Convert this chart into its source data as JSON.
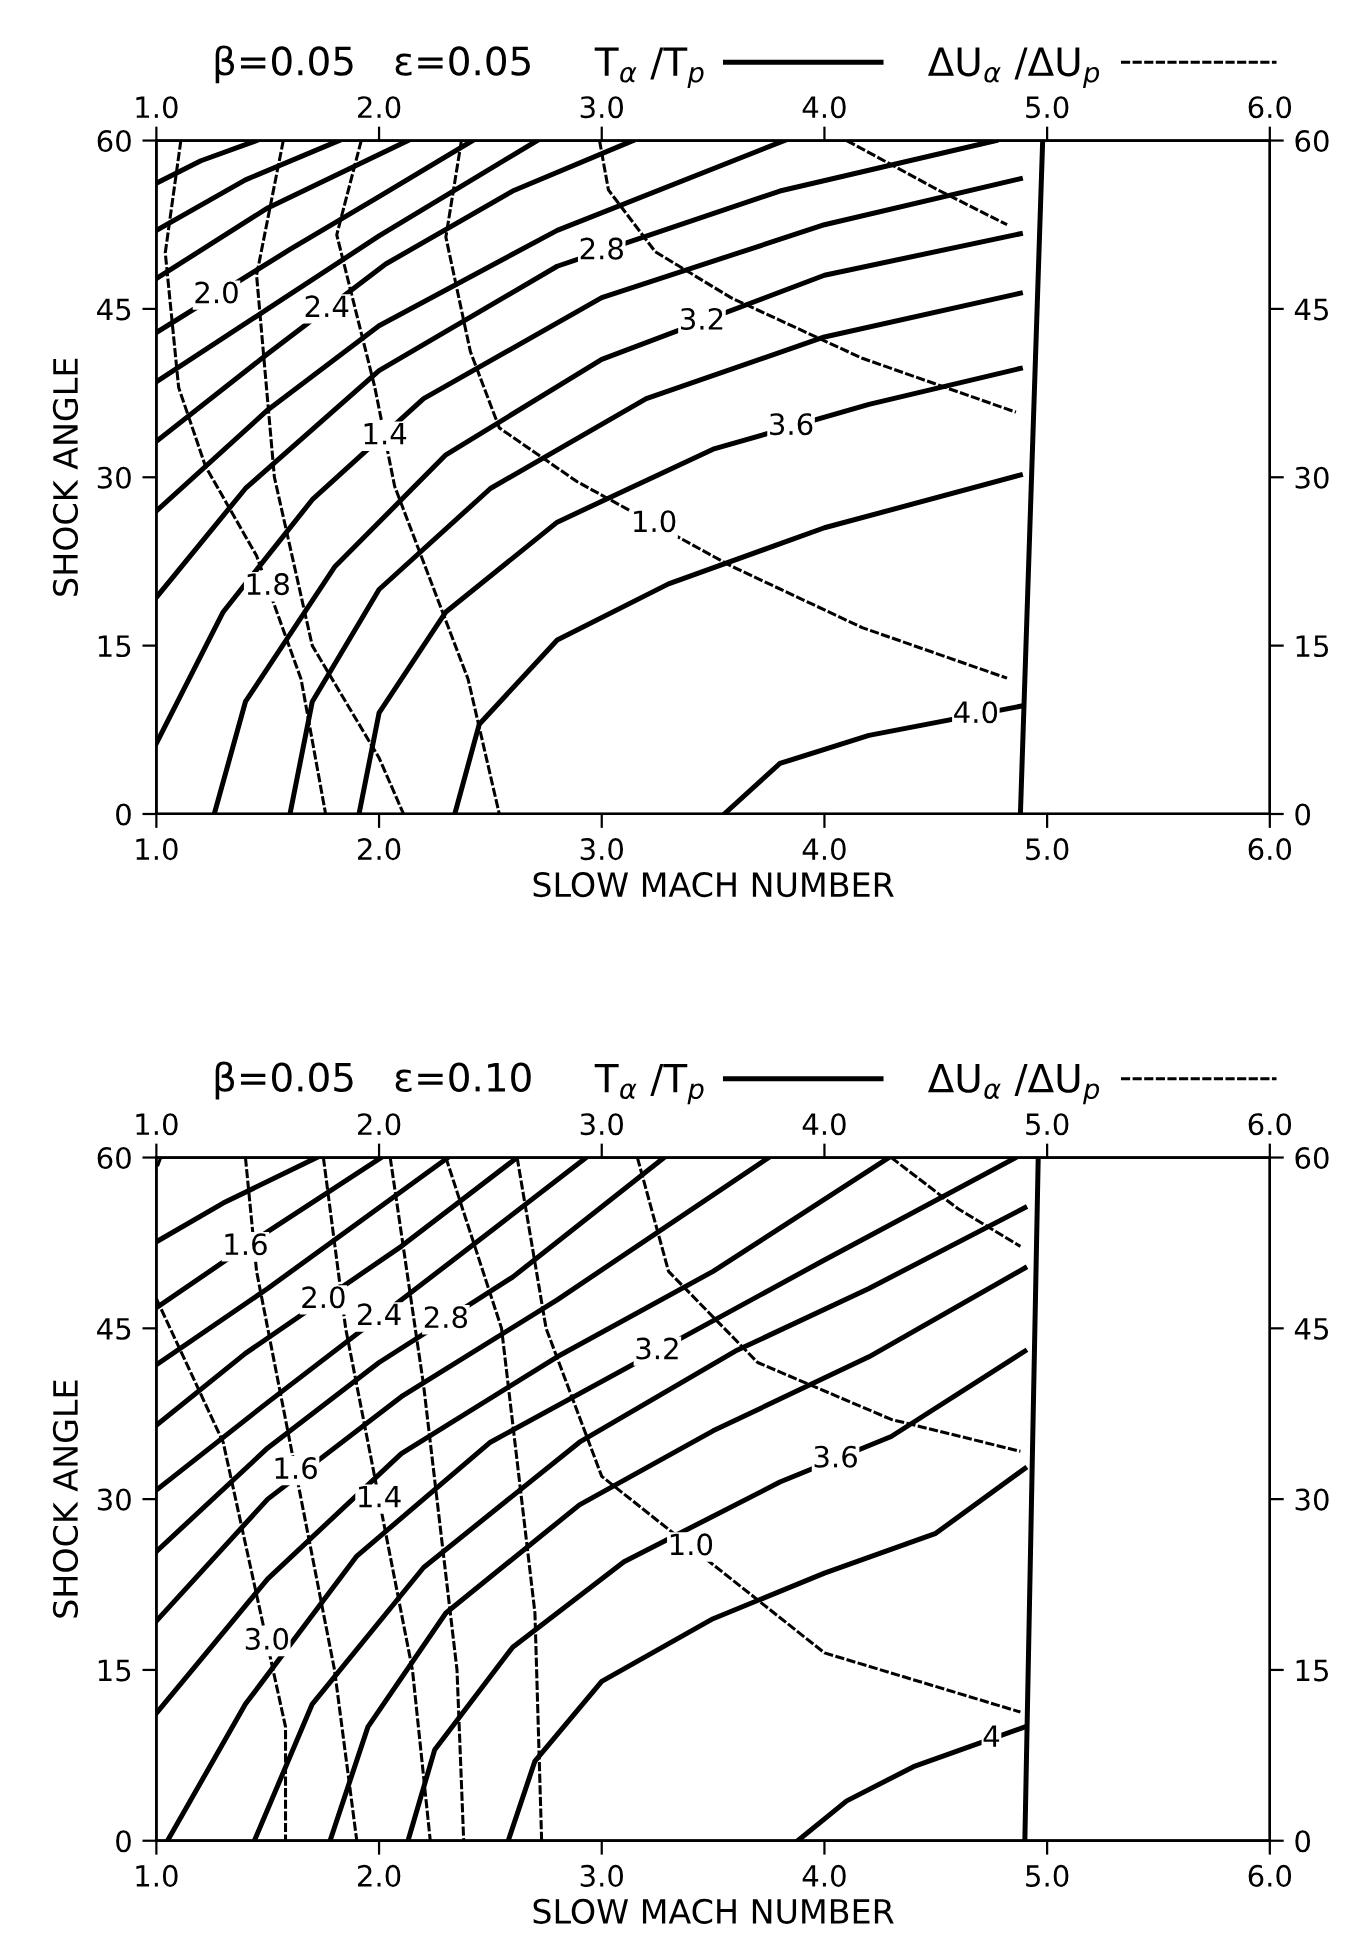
{
  "chart_data": [
    {
      "type": "line",
      "title": "β=0.05   ε=0.05",
      "xlabel": "SLOW MACH NUMBER",
      "ylabel": "SHOCK ANGLE",
      "legend": "top",
      "grid": false,
      "xlim": [
        1,
        6
      ],
      "xticks": [
        {
          "value": 1,
          "label": "1.0"
        },
        {
          "value": 2,
          "label": "2.0"
        },
        {
          "value": 3,
          "label": "3.0"
        },
        {
          "value": 4,
          "label": "4.0"
        },
        {
          "value": 5,
          "label": "5.0"
        },
        {
          "value": 6,
          "label": "6.0"
        }
      ],
      "x2lim": [
        1,
        6
      ],
      "x2ticks": [
        {
          "value": 1,
          "label": "1.0"
        },
        {
          "value": 2,
          "label": "2.0"
        },
        {
          "value": 3,
          "label": "3.0"
        },
        {
          "value": 4,
          "label": "4.0"
        },
        {
          "value": 5,
          "label": "5.0"
        },
        {
          "value": 6,
          "label": "6.0"
        }
      ],
      "ylim": [
        0,
        60
      ],
      "yticks": [
        0,
        15,
        30,
        45,
        60
      ],
      "y2lim": [
        0,
        60
      ],
      "y2ticks": [
        0,
        15,
        30,
        45,
        60
      ],
      "series": [
        {
          "name": "T$_{α}$ /T$_{p}$",
          "line_style": "solid",
          "color": "#000000",
          "x": [
            1,
            1.2,
            1.45
          ],
          "values": [
            56.2,
            58.2,
            60
          ]
        },
        {
          "line_style": "solid",
          "color": "#000000",
          "x": [
            1,
            1.4,
            1.82
          ],
          "values": [
            52,
            56.5,
            60
          ]
        },
        {
          "line_style": "solid",
          "color": "#000000",
          "x": [
            1,
            1.5,
            2.13
          ],
          "values": [
            47.7,
            54,
            60
          ]
        },
        {
          "line_style": "solid",
          "color": "#000000",
          "x": [
            1,
            1.6,
            2.0,
            2.42
          ],
          "values": [
            42.9,
            50.3,
            55,
            60
          ]
        },
        {
          "line_style": "solid",
          "color": "#000000",
          "x": [
            1,
            1.5,
            2.0,
            2.71
          ],
          "values": [
            38.5,
            45,
            51.5,
            60
          ]
        },
        {
          "line_style": "solid",
          "color": "#000000",
          "x": [
            1,
            1.5,
            2.03,
            2.6,
            3.14
          ],
          "values": [
            33.2,
            41,
            49,
            55.5,
            60
          ]
        },
        {
          "line_style": "solid",
          "color": "#000000",
          "x": [
            1,
            1.5,
            2.0,
            2.8,
            3.82
          ],
          "values": [
            27,
            36,
            43.5,
            52,
            60
          ]
        },
        {
          "line_style": "solid",
          "color": "#000000",
          "x": [
            1,
            1.4,
            2.0,
            2.8,
            3.8,
            4.77
          ],
          "values": [
            19.3,
            29,
            39.5,
            48.8,
            55.5,
            60
          ]
        },
        {
          "line_style": "solid",
          "color": "#000000",
          "x": [
            1,
            1.3,
            1.7,
            2.2,
            3.0,
            4.0,
            4.88
          ],
          "values": [
            6.3,
            18,
            28,
            37,
            46,
            52.5,
            56.6
          ]
        },
        {
          "line_style": "solid",
          "color": "#000000",
          "x": [
            1.26,
            1.4,
            1.8,
            2.3,
            3.0,
            4.0,
            4.88
          ],
          "values": [
            0,
            10,
            22,
            32,
            40.5,
            48,
            51.7
          ]
        },
        {
          "line_style": "solid",
          "color": "#000000",
          "x": [
            1.6,
            1.7,
            2.0,
            2.5,
            3.2,
            4.0,
            4.88
          ],
          "values": [
            0,
            10,
            20,
            29,
            37,
            42.5,
            46.4
          ]
        },
        {
          "line_style": "solid",
          "color": "#000000",
          "x": [
            1.91,
            2.0,
            2.3,
            2.8,
            3.5,
            4.2,
            4.88
          ],
          "values": [
            0,
            9,
            18,
            26,
            32.5,
            36.5,
            39.7
          ]
        },
        {
          "line_style": "solid",
          "color": "#000000",
          "x": [
            2.34,
            2.45,
            2.8,
            3.3,
            4.0,
            4.88
          ],
          "values": [
            0,
            8,
            15.5,
            20.5,
            25.5,
            30.2
          ]
        },
        {
          "line_style": "solid",
          "color": "#000000",
          "x": [
            3.55,
            3.8,
            4.2,
            4.88
          ],
          "values": [
            0,
            4.5,
            7,
            9.6
          ]
        },
        {
          "line_style": "solid",
          "color": "#000000",
          "x": [
            4.88,
            4.98
          ],
          "values": [
            0,
            60
          ]
        },
        {
          "name": "ΔU$_{α}$ /ΔU$_{p}$",
          "line_style": "dashed",
          "color": "#000000",
          "x": [
            1.11,
            1.04,
            1.1,
            1.22,
            1.45,
            1.65,
            1.76
          ],
          "values": [
            60,
            50,
            38,
            31,
            23,
            12,
            0
          ]
        },
        {
          "line_style": "dashed",
          "color": "#000000",
          "x": [
            1.57,
            1.45,
            1.53,
            1.7,
            2.0,
            2.11
          ],
          "values": [
            60,
            48,
            30,
            15,
            5,
            0
          ]
        },
        {
          "line_style": "dashed",
          "color": "#000000",
          "x": [
            1.92,
            1.81,
            1.98,
            2.07,
            2.4,
            2.54
          ],
          "values": [
            60,
            51.6,
            38.1,
            29.2,
            12,
            0
          ]
        },
        {
          "line_style": "dashed",
          "color": "#000000",
          "x": [
            2.37,
            2.3,
            2.41,
            2.54,
            2.89,
            3.58,
            4.17,
            4.82
          ],
          "values": [
            60,
            51.4,
            41.2,
            34.4,
            29.6,
            22.1,
            16.6,
            12.1
          ]
        },
        {
          "line_style": "dashed",
          "color": "#000000",
          "x": [
            2.99,
            3.03,
            3.24,
            3.58,
            4.17,
            4.86
          ],
          "values": [
            60,
            55.6,
            50.1,
            46,
            40.6,
            35.8
          ]
        },
        {
          "line_style": "dashed",
          "color": "#000000",
          "x": [
            4.1,
            4.51,
            4.82
          ],
          "values": [
            60,
            55.6,
            52.5
          ]
        }
      ],
      "annotations": [
        {
          "text": "2.0",
          "x": 1.27,
          "y": 46.23
        },
        {
          "text": "2.4",
          "x": 1.765,
          "y": 45
        },
        {
          "text": "2.8",
          "x": 3.0,
          "y": 50.14
        },
        {
          "text": "3.2",
          "x": 3.45,
          "y": 43.875
        },
        {
          "text": "3.6",
          "x": 3.85,
          "y": 34.5
        },
        {
          "text": "4.0",
          "x": 4.68,
          "y": 8.84
        },
        {
          "text": "1.4",
          "x": 2.025,
          "y": 33.65
        },
        {
          "text": "1.8",
          "x": 1.5,
          "y": 20.25
        },
        {
          "text": "1.0",
          "x": 3.235,
          "y": 25.85
        }
      ]
    },
    {
      "type": "line",
      "title": "β=0.05   ε=0.10",
      "xlabel": "SLOW MACH NUMBER",
      "ylabel": "SHOCK ANGLE",
      "legend": "top",
      "grid": false,
      "xlim": [
        1,
        6
      ],
      "xticks": [
        {
          "value": 1,
          "label": "1.0"
        },
        {
          "value": 2,
          "label": "2.0"
        },
        {
          "value": 3,
          "label": "3.0"
        },
        {
          "value": 4,
          "label": "4.0"
        },
        {
          "value": 5,
          "label": "5.0"
        },
        {
          "value": 6,
          "label": "6.0"
        }
      ],
      "x2lim": [
        1,
        6
      ],
      "x2ticks": [
        {
          "value": 1,
          "label": "1.0"
        },
        {
          "value": 2,
          "label": "2.0"
        },
        {
          "value": 3,
          "label": "3.0"
        },
        {
          "value": 4,
          "label": "4.0"
        },
        {
          "value": 5,
          "label": "5.0"
        },
        {
          "value": 6,
          "label": "6.0"
        }
      ],
      "ylim": [
        0,
        60
      ],
      "yticks": [
        0,
        15,
        30,
        45,
        60
      ],
      "y2lim": [
        0,
        60
      ],
      "y2ticks": [
        0,
        15,
        30,
        45,
        60
      ],
      "series": [
        {
          "name": "T$_{α}$ /T$_{p}$",
          "line_style": "solid",
          "color": "#000000",
          "x": [
            1,
            1.3,
            1.72
          ],
          "values": [
            52.6,
            56,
            60
          ]
        },
        {
          "line_style": "solid",
          "color": "#000000",
          "x": [
            1,
            1.5,
            2.01
          ],
          "values": [
            46.8,
            53.5,
            60
          ]
        },
        {
          "line_style": "solid",
          "color": "#000000",
          "x": [
            1,
            1.5,
            2.31
          ],
          "values": [
            41.8,
            48.5,
            60
          ]
        },
        {
          "line_style": "solid",
          "color": "#000000",
          "x": [
            1,
            1.4,
            2.1,
            2.62
          ],
          "values": [
            36.5,
            42.8,
            52.2,
            60
          ]
        },
        {
          "line_style": "solid",
          "color": "#000000",
          "x": [
            1,
            1.5,
            2.5,
            2.93
          ],
          "values": [
            30.8,
            38.5,
            53.5,
            60
          ]
        },
        {
          "line_style": "solid",
          "color": "#000000",
          "x": [
            1,
            1.5,
            2.0,
            2.6,
            3.28
          ],
          "values": [
            25.4,
            34.5,
            42,
            49.5,
            60
          ]
        },
        {
          "line_style": "solid",
          "color": "#000000",
          "x": [
            1,
            1.5,
            2.1,
            2.8,
            3.75
          ],
          "values": [
            19.3,
            30,
            39,
            47.5,
            60
          ]
        },
        {
          "line_style": "solid",
          "color": "#000000",
          "x": [
            1,
            1.5,
            2.1,
            2.8,
            3.5,
            4.29
          ],
          "values": [
            11.2,
            23,
            34,
            42.5,
            50,
            60
          ]
        },
        {
          "line_style": "solid",
          "color": "#000000",
          "x": [
            1.05,
            1.4,
            1.9,
            2.5,
            4.0,
            4.86
          ],
          "values": [
            0,
            12,
            25,
            35,
            51,
            60
          ]
        },
        {
          "line_style": "solid",
          "color": "#000000",
          "x": [
            1.44,
            1.7,
            2.2,
            2.9,
            3.6,
            4.2,
            4.9
          ],
          "values": [
            0,
            12,
            24,
            35,
            43,
            48.5,
            55.6
          ]
        },
        {
          "line_style": "solid",
          "color": "#000000",
          "x": [
            1.78,
            1.95,
            2.3,
            2.9,
            3.5,
            4.2,
            4.9
          ],
          "values": [
            0,
            10,
            20,
            29.5,
            36,
            42.5,
            50.3
          ]
        },
        {
          "line_style": "solid",
          "color": "#000000",
          "x": [
            2.13,
            2.25,
            2.6,
            3.1,
            3.8,
            4.3,
            4.9
          ],
          "values": [
            0,
            8,
            17,
            24.5,
            31.5,
            35.5,
            43
          ]
        },
        {
          "line_style": "solid",
          "color": "#000000",
          "x": [
            2.58,
            2.7,
            3.0,
            3.5,
            4.0,
            4.5,
            4.9
          ],
          "values": [
            0,
            7,
            14,
            19.5,
            23.5,
            27,
            32.7
          ]
        },
        {
          "line_style": "solid",
          "color": "#000000",
          "x": [
            3.88,
            4.1,
            4.4,
            4.9
          ],
          "values": [
            0,
            3.5,
            6.5,
            10
          ]
        },
        {
          "line_style": "solid",
          "color": "#000000",
          "x": [
            4.9,
            4.96
          ],
          "values": [
            0,
            60
          ]
        },
        {
          "name": "ΔU$_{α}$ /ΔU$_{p}$",
          "line_style": "dashed",
          "color": "#000000",
          "x": [
            1.02,
            1.0
          ],
          "values": [
            60,
            59
          ]
        },
        {
          "line_style": "dashed",
          "color": "#000000",
          "x": [
            1.0,
            1.3,
            1.58,
            1.58
          ],
          "values": [
            47.6,
            35,
            10,
            0
          ]
        },
        {
          "line_style": "dashed",
          "color": "#000000",
          "x": [
            1.4,
            1.45,
            1.8,
            1.9
          ],
          "values": [
            60,
            50,
            15,
            0
          ]
        },
        {
          "line_style": "dashed",
          "color": "#000000",
          "x": [
            1.75,
            1.85,
            2.15,
            2.23
          ],
          "values": [
            60,
            45,
            15,
            0
          ]
        },
        {
          "line_style": "dashed",
          "color": "#000000",
          "x": [
            2.05,
            2.2,
            2.35,
            2.38
          ],
          "values": [
            60,
            40,
            15,
            0
          ]
        },
        {
          "line_style": "dashed",
          "color": "#000000",
          "x": [
            2.3,
            2.55,
            2.7,
            2.73
          ],
          "values": [
            60,
            45,
            20,
            0
          ]
        },
        {
          "line_style": "dashed",
          "color": "#000000",
          "x": [
            2.62,
            2.75,
            3.0,
            4.0,
            4.88
          ],
          "values": [
            60,
            45,
            32,
            16.5,
            11.3
          ]
        },
        {
          "line_style": "dashed",
          "color": "#000000",
          "x": [
            3.16,
            3.3,
            3.7,
            4.3,
            4.88
          ],
          "values": [
            60,
            50,
            42,
            37,
            34.2
          ]
        },
        {
          "line_style": "dashed",
          "color": "#000000",
          "x": [
            4.3,
            4.6,
            4.88
          ],
          "values": [
            60,
            55.5,
            52.2
          ]
        }
      ],
      "annotations": [
        {
          "text": "1.6",
          "x": 1.4,
          "y": 52.16
        },
        {
          "text": "2.0",
          "x": 1.75,
          "y": 47.5
        },
        {
          "text": "2.4",
          "x": 2.0,
          "y": 46
        },
        {
          "text": "2.8",
          "x": 2.3,
          "y": 45.75
        },
        {
          "text": "3.2",
          "x": 3.25,
          "y": 43
        },
        {
          "text": "3.6",
          "x": 4.05,
          "y": 33.5
        },
        {
          "text": "4",
          "x": 4.75,
          "y": 8.95
        },
        {
          "text": "1.6",
          "x": 1.625,
          "y": 32.5
        },
        {
          "text": "1.4",
          "x": 2.0,
          "y": 30
        },
        {
          "text": "3.0",
          "x": 1.496,
          "y": 17.5
        },
        {
          "text": "1.0",
          "x": 3.4,
          "y": 25.8
        }
      ]
    }
  ]
}
